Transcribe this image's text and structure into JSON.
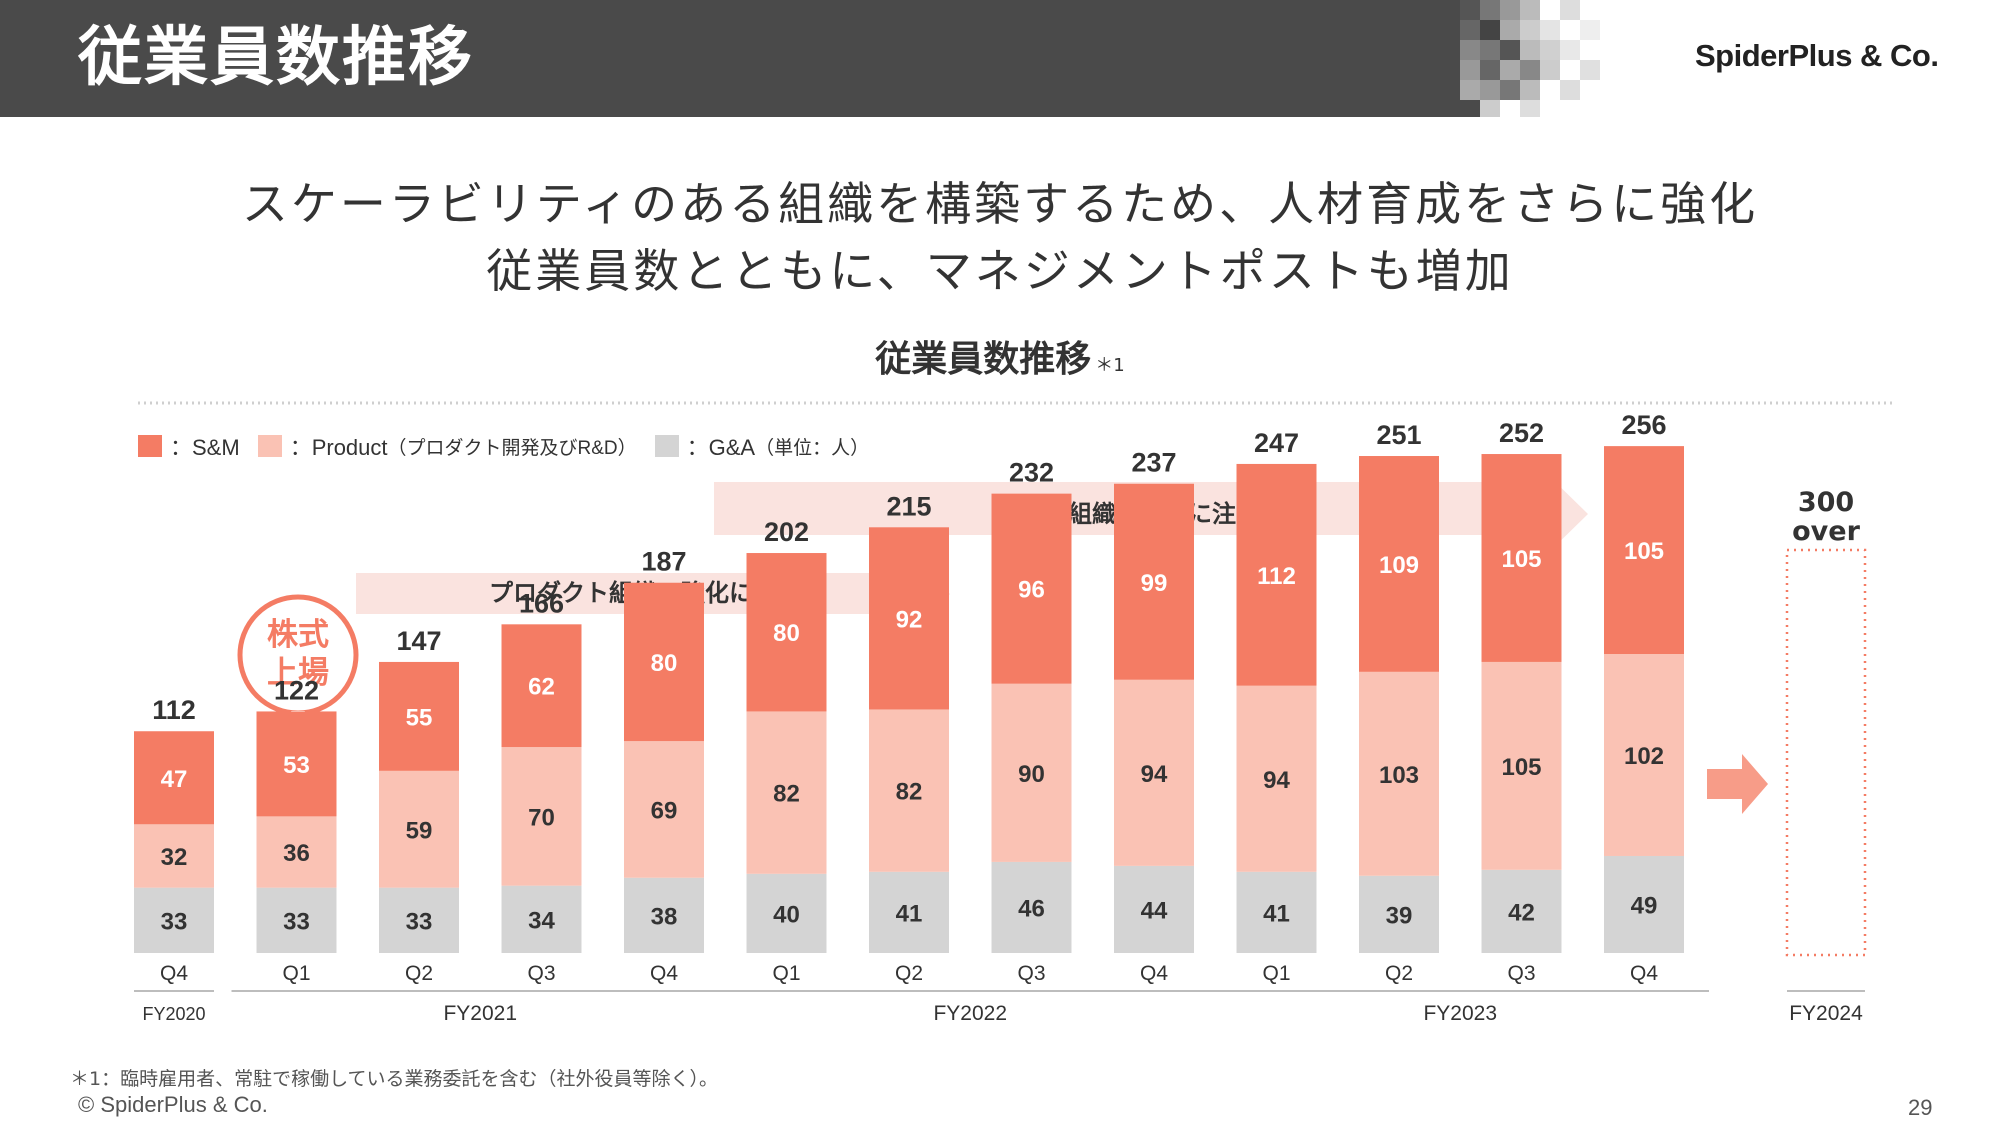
{
  "header": {
    "title": "従業員数推移",
    "brand": "SpiderPlus & Co."
  },
  "subtitle": {
    "line1": "スケーラビリティのある組織を構築するため、人材育成をさらに強化",
    "line2": "従業員数とともに、マネジメントポストも増加"
  },
  "chart_title": {
    "text": "従業員数推移",
    "footnote_marker": "＊1"
  },
  "legend": [
    {
      "label": "：S&M",
      "note": "",
      "color": "#f47c64"
    },
    {
      "label": "：Product",
      "note": "（プロダクト開発及びR&D）",
      "color": "#fac2b4"
    },
    {
      "label": "：G&A",
      "note": "（単位：人）",
      "color": "#d4d4d4"
    }
  ],
  "annotations": {
    "arrow_product": "プロダクト組織の強化に注力",
    "arrow_sales": "営業組織の強化に注力",
    "ipo_badge_line1": "株式",
    "ipo_badge_line2": "上場",
    "forecast_value": "300",
    "forecast_suffix": "over"
  },
  "chart_data": {
    "type": "bar",
    "stacked": true,
    "categories": [
      "Q4",
      "Q1",
      "Q2",
      "Q3",
      "Q4",
      "Q1",
      "Q2",
      "Q3",
      "Q4",
      "Q1",
      "Q2",
      "Q3",
      "Q4"
    ],
    "fiscal_groups": [
      {
        "label": "FY2020",
        "count": 1
      },
      {
        "label": "FY2021",
        "count": 4
      },
      {
        "label": "FY2022",
        "count": 4
      },
      {
        "label": "FY2023",
        "count": 4
      }
    ],
    "series": [
      {
        "name": "G&A",
        "color": "#d4d4d4",
        "values": [
          33,
          33,
          33,
          34,
          38,
          40,
          41,
          46,
          44,
          41,
          39,
          42,
          49
        ]
      },
      {
        "name": "Product",
        "color": "#fac2b4",
        "values": [
          32,
          36,
          59,
          70,
          69,
          82,
          82,
          90,
          94,
          94,
          103,
          105,
          102
        ]
      },
      {
        "name": "S&M",
        "color": "#f47c64",
        "values": [
          47,
          53,
          55,
          62,
          80,
          80,
          92,
          96,
          99,
          112,
          109,
          105,
          105
        ]
      }
    ],
    "totals": [
      112,
      122,
      147,
      166,
      187,
      202,
      215,
      232,
      237,
      247,
      251,
      252,
      256
    ],
    "forecast": {
      "label": "FY2024",
      "value": "300 over"
    },
    "legend_position": "top-left"
  },
  "footer": {
    "footnote": "＊1：臨時雇用者、常駐で稼働している業務委託を含む（社外役員等除く）。",
    "copyright": "© SpiderPlus & Co.",
    "page": "29"
  }
}
